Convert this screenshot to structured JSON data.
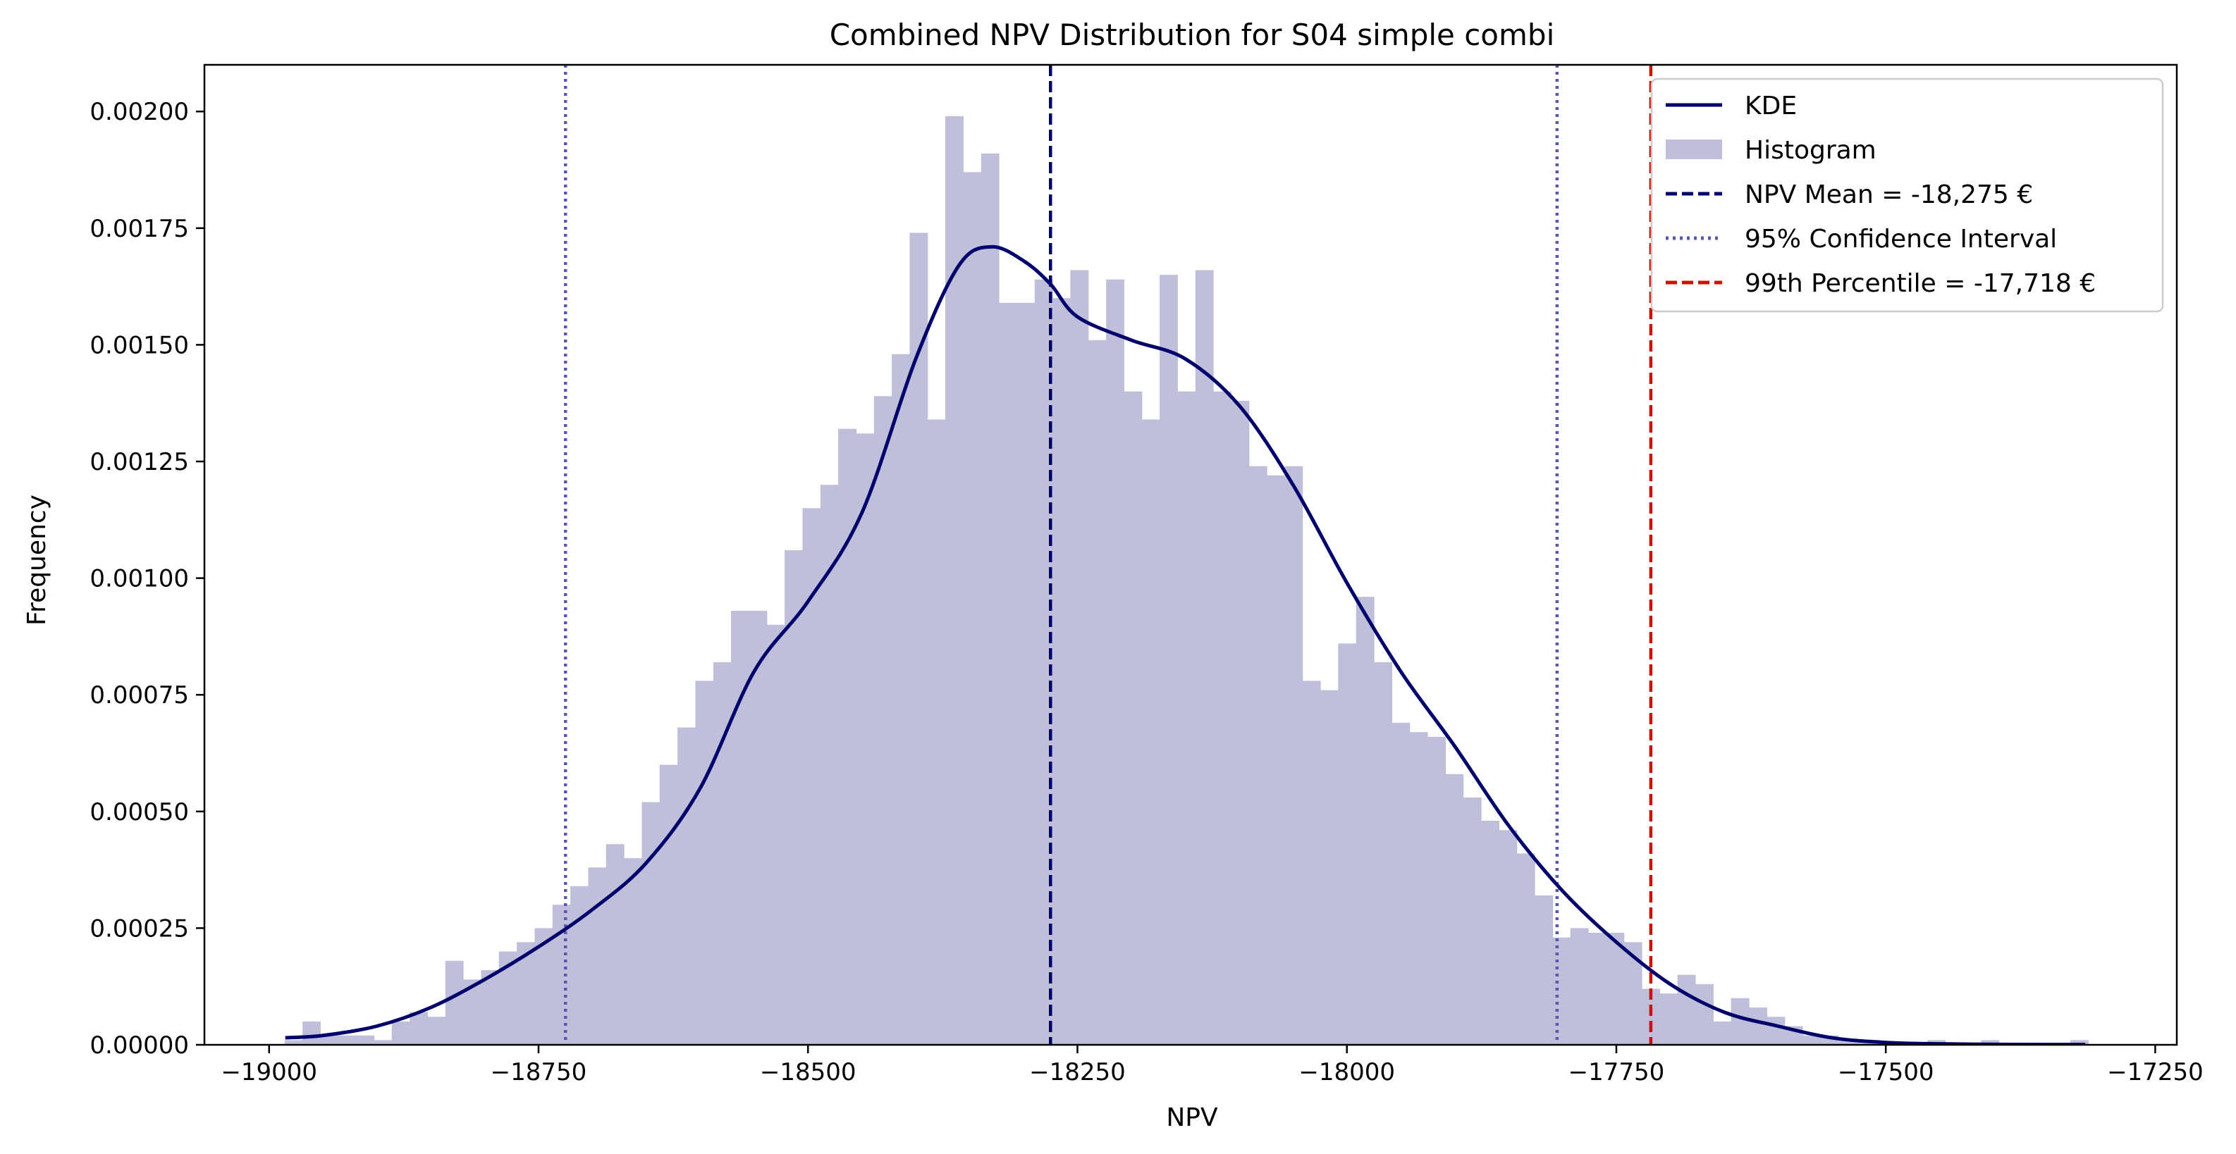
{
  "chart_data": {
    "type": "bar",
    "title": "Combined NPV Distribution for S04 simple combi",
    "xlabel": "NPV",
    "ylabel": "Frequency",
    "xlim": [
      -19060,
      -17230
    ],
    "ylim": [
      0,
      0.0021
    ],
    "x_ticks": [
      -19000,
      -18750,
      -18500,
      -18250,
      -18000,
      -17750,
      -17500,
      -17250
    ],
    "x_tick_labels": [
      "−19000",
      "−18750",
      "−18500",
      "−18250",
      "−18000",
      "−17750",
      "−17500",
      "−17250"
    ],
    "y_ticks": [
      0,
      0.00025,
      0.0005,
      0.00075,
      0.001,
      0.00125,
      0.0015,
      0.00175,
      0.002
    ],
    "y_tick_labels": [
      "0.00000",
      "0.00025",
      "0.00050",
      "0.00075",
      "0.00100",
      "0.00125",
      "0.00150",
      "0.00175",
      "0.00200"
    ],
    "grid": false,
    "legend_position": "top-right",
    "histogram": {
      "name": "Histogram",
      "color": "#bfbfdc",
      "bin_edges": [
        -18985.6,
        -18969.0,
        -18952.5,
        -18935.9,
        -18919.3,
        -18902.7,
        -18886.2,
        -18869.6,
        -18853.0,
        -18836.5,
        -18819.9,
        -18803.3,
        -18786.8,
        -18770.2,
        -18753.6,
        -18737.1,
        -18720.5,
        -18703.9,
        -18687.4,
        -18670.8,
        -18654.2,
        -18637.7,
        -18621.1,
        -18604.5,
        -18587.9,
        -18571.4,
        -18554.8,
        -18538.2,
        -18521.7,
        -18505.1,
        -18488.5,
        -18472.0,
        -18455.4,
        -18438.8,
        -18422.3,
        -18405.7,
        -18389.1,
        -18372.6,
        -18356.0,
        -18339.4,
        -18322.9,
        -18306.3,
        -18289.7,
        -18273.1,
        -18256.6,
        -18240.0,
        -18223.4,
        -18206.9,
        -18190.3,
        -18173.7,
        -18157.2,
        -18140.6,
        -18124.0,
        -18107.5,
        -18090.9,
        -18074.3,
        -18057.8,
        -18041.2,
        -18024.6,
        -18008.1,
        -17991.5,
        -17974.9,
        -17958.3,
        -17941.8,
        -17925.2,
        -17908.6,
        -17892.1,
        -17875.5,
        -17858.9,
        -17842.4,
        -17825.8,
        -17809.2,
        -17792.7,
        -17776.1,
        -17759.5,
        -17743.0,
        -17726.4,
        -17709.8,
        -17693.3,
        -17676.7,
        -17660.1,
        -17643.6,
        -17627.0,
        -17610.4,
        -17593.8,
        -17577.3,
        -17560.7,
        -17544.1,
        -17527.6,
        -17511.0,
        -17494.4,
        -17477.9,
        -17461.3,
        -17444.7,
        -17428.2,
        -17411.6,
        -17395.0,
        -17378.5,
        -17361.9,
        -17345.3,
        -17328.8,
        -17312.2
      ],
      "values": [
        1e-05,
        5e-05,
        2e-05,
        2e-05,
        2e-05,
        1e-05,
        5e-05,
        7e-05,
        6e-05,
        0.00018,
        0.00014,
        0.00016,
        0.0002,
        0.00022,
        0.00025,
        0.0003,
        0.00034,
        0.00038,
        0.00043,
        0.0004,
        0.00052,
        0.0006,
        0.00068,
        0.00078,
        0.00082,
        0.00093,
        0.00093,
        0.0009,
        0.00106,
        0.00115,
        0.0012,
        0.00132,
        0.00131,
        0.00139,
        0.00148,
        0.00174,
        0.00134,
        0.00199,
        0.00187,
        0.00191,
        0.00159,
        0.00159,
        0.00164,
        0.0016,
        0.00166,
        0.00151,
        0.00164,
        0.0014,
        0.00134,
        0.00165,
        0.0014,
        0.00166,
        0.0014,
        0.00138,
        0.00124,
        0.00122,
        0.00124,
        0.00078,
        0.00076,
        0.00086,
        0.00096,
        0.00082,
        0.00069,
        0.00067,
        0.00066,
        0.00058,
        0.00053,
        0.00048,
        0.00046,
        0.00041,
        0.00032,
        0.00023,
        0.00025,
        0.00024,
        0.00024,
        0.00022,
        0.00012,
        0.00011,
        0.00015,
        0.00013,
        5e-05,
        0.0001,
        8e-05,
        6e-05,
        4e-05,
        2e-05,
        2e-05,
        1e-05,
        1e-05,
        0.0,
        0.0,
        0.0,
        1e-05,
        0.0,
        0.0,
        1e-05,
        0.0,
        0.0,
        0.0,
        0.0,
        1e-05,
        0.0
      ]
    },
    "kde": {
      "name": "KDE",
      "color": "#00006b",
      "x": [
        -18985,
        -18950,
        -18900,
        -18850,
        -18800,
        -18750,
        -18700,
        -18650,
        -18600,
        -18550,
        -18500,
        -18450,
        -18400,
        -18360,
        -18330,
        -18300,
        -18275,
        -18250,
        -18200,
        -18150,
        -18100,
        -18050,
        -18000,
        -17950,
        -17900,
        -17850,
        -17800,
        -17750,
        -17700,
        -17650,
        -17600,
        -17550,
        -17500,
        -17450,
        -17400,
        -17350,
        -17315
      ],
      "y": [
        1.5e-05,
        2e-05,
        4e-05,
        8e-05,
        0.00014,
        0.00021,
        0.00029,
        0.00039,
        0.00055,
        0.0008,
        0.00095,
        0.00114,
        0.00147,
        0.00167,
        0.00171,
        0.00168,
        0.00163,
        0.00156,
        0.00151,
        0.00147,
        0.00137,
        0.0012,
        0.00099,
        0.0008,
        0.00064,
        0.00047,
        0.00033,
        0.00022,
        0.00013,
        7e-05,
        4e-05,
        1.5e-05,
        5e-06,
        2e-06,
        1e-06,
        5e-07,
        5e-07
      ]
    },
    "markers": [
      {
        "name": "NPV Mean = -18,275 €",
        "x": -18275,
        "style": "dashed",
        "color": "#00006b"
      },
      {
        "name": "95% Confidence Interval",
        "x": -18725,
        "style": "dotted",
        "color": "#5a58ad"
      },
      {
        "name": "95% Confidence Interval",
        "x": -17805,
        "style": "dotted",
        "color": "#5a58ad",
        "in_legend": false
      },
      {
        "name": "99th Percentile = -17,718 €",
        "x": -17718,
        "style": "dashed",
        "color": "#cc1100"
      }
    ],
    "legend": [
      {
        "label": "KDE",
        "kind": "line",
        "color": "#00006b"
      },
      {
        "label": "Histogram",
        "kind": "patch",
        "color": "#bfbfdc"
      },
      {
        "label": "NPV Mean = -18,275 €",
        "kind": "dashed",
        "color": "#00006b"
      },
      {
        "label": "95% Confidence Interval",
        "kind": "dotted",
        "color": "#5a58ad"
      },
      {
        "label": "99th Percentile = -17,718 €",
        "kind": "dashed",
        "color": "#cc1100"
      }
    ]
  }
}
